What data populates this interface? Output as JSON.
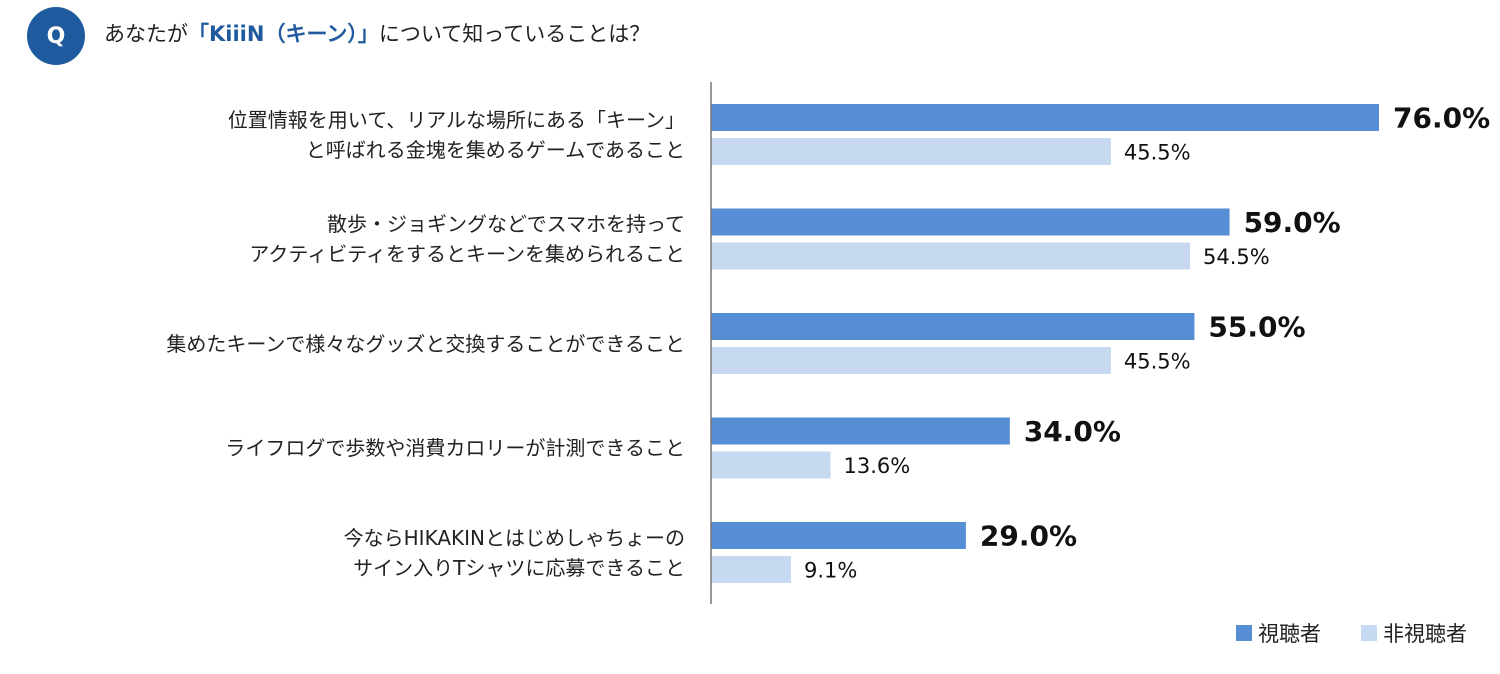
{
  "header": {
    "badge": "Q",
    "question_prefix": "あなたが",
    "question_highlight": "「KiiiN（キーン）」",
    "question_suffix": "について知っていることは？"
  },
  "colors": {
    "viewers": "#558ed5",
    "non_viewers": "#c6d9f1",
    "accent": "#1f5a9e"
  },
  "chart_data": {
    "type": "bar",
    "orientation": "horizontal",
    "title": "",
    "xlabel": "",
    "ylabel": "",
    "xlim": [
      0,
      80
    ],
    "categories": [
      [
        "位置情報を用いて、リアルな場所にある「キーン」",
        "と呼ばれる金塊を集めるゲームであること"
      ],
      [
        "散歩・ジョギングなどでスマホを持って",
        "アクティビティをするとキーンを集められること"
      ],
      [
        "集めたキーンで様々なグッズと交換することができること"
      ],
      [
        "ライフログで歩数や消費カロリーが計測できること"
      ],
      [
        "今ならHIKAKINとはじめしゃちょーの",
        "サイン入りTシャツに応募できること"
      ]
    ],
    "series": [
      {
        "name": "視聴者",
        "values": [
          76.0,
          59.0,
          55.0,
          34.0,
          29.0
        ],
        "labels": [
          "76.0%",
          "59.0%",
          "55.0%",
          "34.0%",
          "29.0%"
        ]
      },
      {
        "name": "非視聴者",
        "values": [
          45.5,
          54.5,
          45.5,
          13.6,
          9.1
        ],
        "labels": [
          "45.5%",
          "54.5%",
          "45.5%",
          "13.6%",
          "9.1%"
        ]
      }
    ],
    "legend_position": "bottom-right"
  }
}
